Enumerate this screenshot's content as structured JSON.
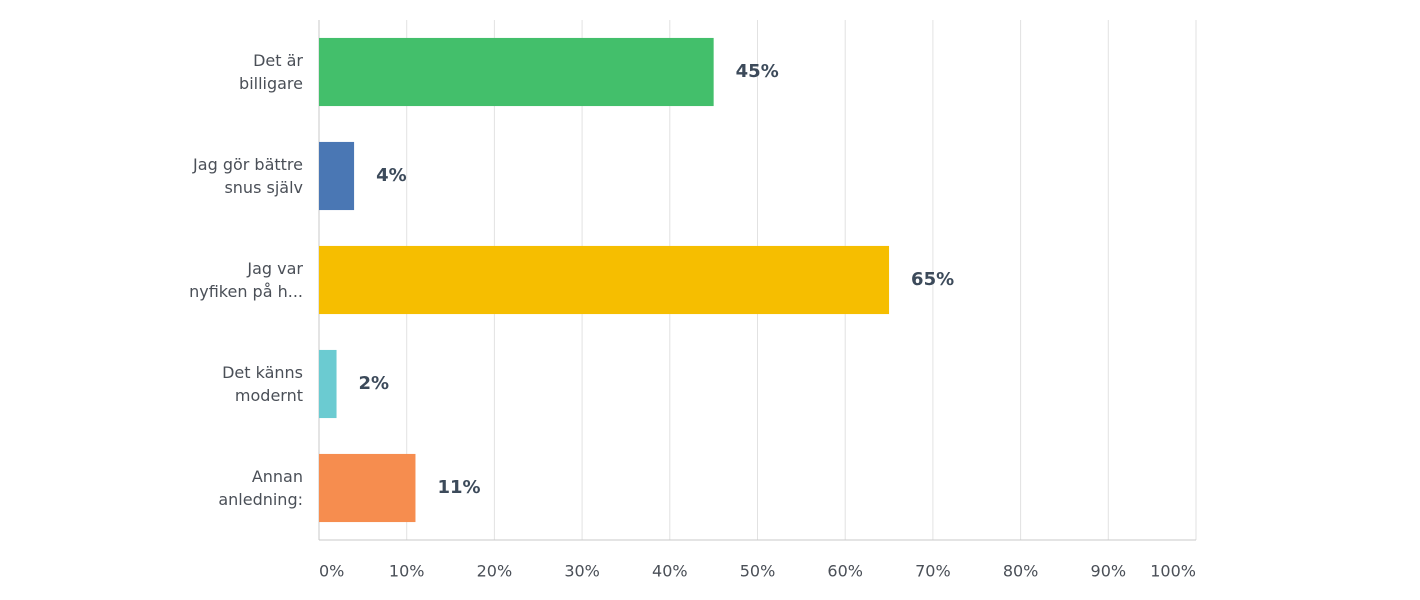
{
  "chart_data": {
    "type": "bar",
    "orientation": "horizontal",
    "categories": [
      "Det är\nbilligare",
      "Jag gör bättre\nsnus själv",
      "Jag var\nnyfiken på h...",
      "Det känns\nmodernt",
      "Annan\nanledning:"
    ],
    "values": [
      45,
      4,
      65,
      2,
      11
    ],
    "value_labels": [
      "45%",
      "4%",
      "65%",
      "2%",
      "11%"
    ],
    "colors": [
      "#43bf6b",
      "#4a77b4",
      "#f6be00",
      "#6bcbd1",
      "#f68d4f"
    ],
    "xlim": [
      0,
      100
    ],
    "xticks": [
      {
        "value": 0,
        "label": "0%"
      },
      {
        "value": 10,
        "label": "10%"
      },
      {
        "value": 20,
        "label": "20%"
      },
      {
        "value": 30,
        "label": "30%"
      },
      {
        "value": 40,
        "label": "40%"
      },
      {
        "value": 50,
        "label": "50%"
      },
      {
        "value": 60,
        "label": "60%"
      },
      {
        "value": 70,
        "label": "70%"
      },
      {
        "value": 80,
        "label": "80%"
      },
      {
        "value": 90,
        "label": "90%"
      },
      {
        "value": 100,
        "label": "100%"
      }
    ],
    "grid": true
  }
}
